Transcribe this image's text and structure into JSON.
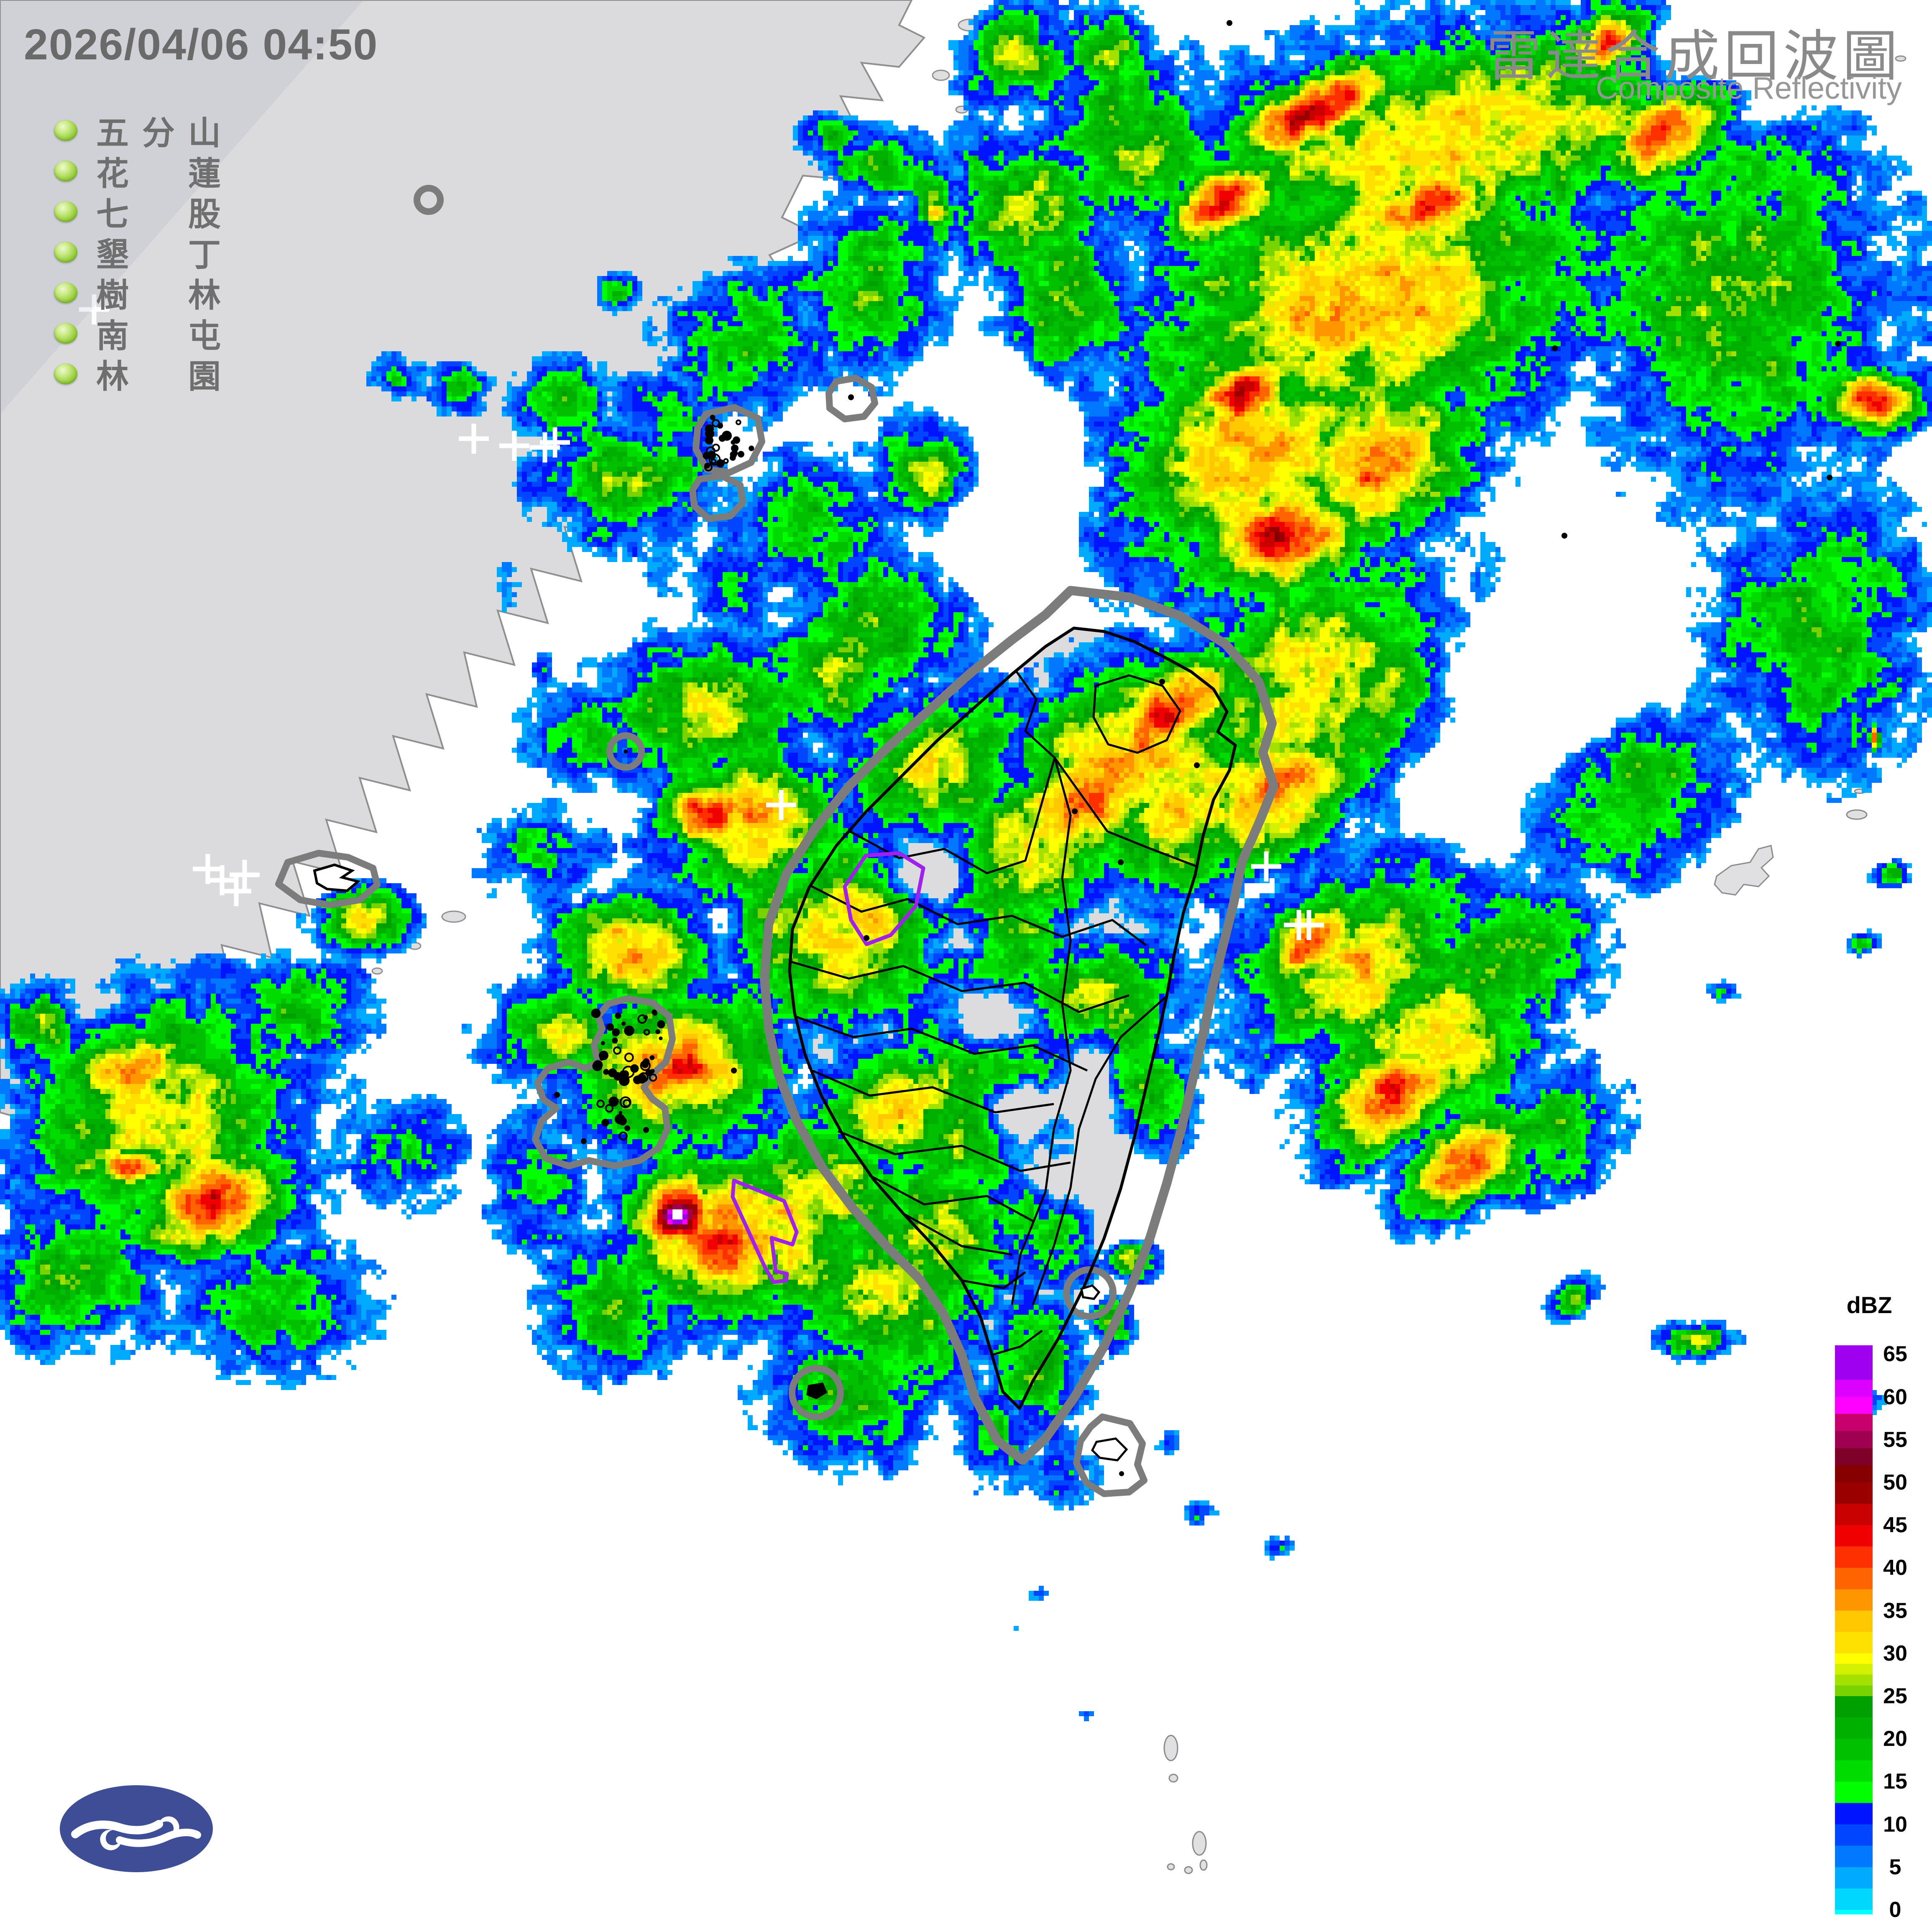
{
  "header": {
    "timestamp": "2026/04/06 04:50"
  },
  "title": {
    "zh": "雷達合成回波圖",
    "en": "Composite Reflectivity"
  },
  "stations": {
    "names": [
      "五分山",
      "花蓮",
      "七股",
      "墾丁",
      "樹林",
      "南屯",
      "林園"
    ],
    "rows": [
      [
        "五",
        "分",
        "山"
      ],
      [
        "花",
        "",
        "蓮"
      ],
      [
        "七",
        "",
        "股"
      ],
      [
        "墾",
        "",
        "丁"
      ],
      [
        "樹",
        "",
        "林"
      ],
      [
        "南",
        "",
        "屯"
      ],
      [
        "林",
        "",
        "園"
      ]
    ],
    "dot_color": "#9ACF3F"
  },
  "legend": {
    "title": "dBZ",
    "ticks": [
      65,
      60,
      55,
      50,
      45,
      40,
      35,
      30,
      25,
      20,
      15,
      10,
      5,
      0
    ],
    "stops": [
      [
        67,
        "#FFFFFF"
      ],
      [
        65,
        "#A000F0"
      ],
      [
        62,
        "#DC00FF"
      ],
      [
        60,
        "#FF00FF"
      ],
      [
        58,
        "#C8006E"
      ],
      [
        56,
        "#A00050"
      ],
      [
        54,
        "#7D0028"
      ],
      [
        52,
        "#870000"
      ],
      [
        50,
        "#9B0000"
      ],
      [
        47.5,
        "#C80000"
      ],
      [
        45,
        "#F00000"
      ],
      [
        42.5,
        "#FF3000"
      ],
      [
        40,
        "#FF6400"
      ],
      [
        37.5,
        "#FF9600"
      ],
      [
        35,
        "#FFC800"
      ],
      [
        32.5,
        "#FFE100"
      ],
      [
        30,
        "#FFFF00"
      ],
      [
        28.75,
        "#D2F000"
      ],
      [
        27.5,
        "#A5E100"
      ],
      [
        26.25,
        "#78D200"
      ],
      [
        25,
        "#00A000"
      ],
      [
        22.5,
        "#00B000"
      ],
      [
        20,
        "#00C000"
      ],
      [
        17.5,
        "#00DC00"
      ],
      [
        15,
        "#00FF00"
      ],
      [
        12.5,
        "#0014FF"
      ],
      [
        10,
        "#0046FF"
      ],
      [
        7.5,
        "#0078FF"
      ],
      [
        5,
        "#00AAFF"
      ],
      [
        2.5,
        "#00D7FF"
      ],
      [
        0,
        "#00FFFF"
      ]
    ]
  },
  "logo": {
    "name": "central-weather-administration-logo",
    "color": "#3D4E97"
  },
  "map_data": {
    "type": "heatmap",
    "unit": "dBZ",
    "region": "Taiwan and surrounding seas",
    "echo_blobs": [
      [
        3500,
        330,
        950,
        360,
        -12,
        34
      ],
      [
        3280,
        700,
        800,
        500,
        -25,
        36
      ],
      [
        3000,
        1100,
        500,
        450,
        -15,
        36
      ],
      [
        3150,
        1650,
        550,
        400,
        -25,
        33
      ],
      [
        4150,
        700,
        500,
        600,
        0,
        26
      ],
      [
        4350,
        1500,
        350,
        450,
        0,
        22
      ],
      [
        2700,
        350,
        300,
        300,
        0,
        27
      ],
      [
        2550,
        700,
        250,
        350,
        0,
        24
      ],
      [
        3900,
        1900,
        350,
        250,
        -30,
        24
      ],
      [
        2850,
        1950,
        350,
        250,
        -30,
        34
      ],
      [
        2450,
        500,
        280,
        260,
        0,
        27
      ],
      [
        3150,
        260,
        330,
        120,
        -28,
        47
      ],
      [
        2930,
        480,
        240,
        120,
        -30,
        46
      ],
      [
        3400,
        500,
        300,
        120,
        -25,
        44
      ],
      [
        2980,
        940,
        220,
        130,
        -20,
        45
      ],
      [
        3070,
        1280,
        260,
        170,
        -18,
        48
      ],
      [
        2800,
        1700,
        300,
        160,
        -35,
        44
      ],
      [
        4000,
        300,
        280,
        140,
        -35,
        45
      ],
      [
        4480,
        960,
        150,
        100,
        0,
        44
      ],
      [
        3850,
        100,
        200,
        100,
        -30,
        42
      ],
      [
        3300,
        1100,
        350,
        250,
        -20,
        41
      ],
      [
        2600,
        1900,
        300,
        200,
        -35,
        42
      ],
      [
        3050,
        1900,
        300,
        220,
        -30,
        40
      ],
      [
        3250,
        2300,
        400,
        300,
        -30,
        36
      ],
      [
        3140,
        2250,
        180,
        120,
        -35,
        47
      ],
      [
        3320,
        2620,
        260,
        160,
        -35,
        47
      ],
      [
        3500,
        2780,
        240,
        140,
        -35,
        44
      ],
      [
        3400,
        2500,
        400,
        300,
        -30,
        33
      ],
      [
        3600,
        2300,
        300,
        250,
        -30,
        26
      ],
      [
        3700,
        2700,
        250,
        200,
        -30,
        22
      ],
      [
        1500,
        1150,
        280,
        200,
        0,
        25
      ],
      [
        1800,
        820,
        280,
        220,
        0,
        23
      ],
      [
        2080,
        680,
        230,
        280,
        0,
        26
      ],
      [
        1350,
        960,
        160,
        130,
        0,
        22
      ],
      [
        2230,
        1130,
        200,
        180,
        0,
        29
      ],
      [
        1950,
        1250,
        250,
        220,
        0,
        20
      ],
      [
        1600,
        1000,
        200,
        160,
        0,
        17
      ],
      [
        2230,
        480,
        80,
        160,
        -20,
        24
      ],
      [
        1100,
        930,
        100,
        80,
        0,
        20
      ],
      [
        2100,
        1500,
        300,
        250,
        0,
        24
      ],
      [
        1700,
        1700,
        350,
        250,
        0,
        29
      ],
      [
        1800,
        1960,
        300,
        260,
        0,
        36
      ],
      [
        1700,
        1950,
        170,
        130,
        0,
        47
      ],
      [
        2020,
        2230,
        380,
        320,
        0,
        34
      ],
      [
        1520,
        2280,
        260,
        190,
        0,
        37
      ],
      [
        2250,
        1830,
        300,
        250,
        0,
        31
      ],
      [
        1980,
        1630,
        280,
        200,
        0,
        25
      ],
      [
        1400,
        1750,
        200,
        160,
        0,
        20
      ],
      [
        1300,
        2050,
        200,
        160,
        0,
        18
      ],
      [
        2100,
        400,
        170,
        120,
        0,
        24
      ],
      [
        2000,
        330,
        120,
        80,
        0,
        20
      ],
      [
        2240,
        510,
        60,
        50,
        0,
        33
      ],
      [
        1600,
        1200,
        120,
        300,
        0,
        13
      ],
      [
        1750,
        1400,
        150,
        200,
        0,
        16
      ],
      [
        1210,
        1400,
        50,
        90,
        0,
        10
      ],
      [
        1300,
        1600,
        40,
        70,
        0,
        9
      ],
      [
        380,
        2680,
        480,
        380,
        -15,
        33
      ],
      [
        520,
        2870,
        280,
        190,
        -15,
        45
      ],
      [
        320,
        2560,
        220,
        160,
        0,
        39
      ],
      [
        180,
        3060,
        280,
        220,
        0,
        25
      ],
      [
        720,
        2420,
        220,
        160,
        0,
        23
      ],
      [
        860,
        2200,
        150,
        100,
        0,
        34
      ],
      [
        320,
        2790,
        130,
        70,
        0,
        48
      ],
      [
        650,
        3120,
        320,
        220,
        0,
        21
      ],
      [
        980,
        2760,
        180,
        180,
        0,
        16
      ],
      [
        100,
        2450,
        150,
        120,
        0,
        28
      ],
      [
        1620,
        2560,
        360,
        260,
        -10,
        39
      ],
      [
        1640,
        2560,
        170,
        120,
        0,
        46
      ],
      [
        1730,
        2950,
        320,
        270,
        0,
        42
      ],
      [
        1625,
        2905,
        170,
        140,
        0,
        52
      ],
      [
        1620,
        2905,
        75,
        62,
        0,
        72
      ],
      [
        1950,
        2920,
        380,
        320,
        0,
        37
      ],
      [
        2130,
        3120,
        320,
        300,
        0,
        30
      ],
      [
        1470,
        3120,
        220,
        220,
        0,
        25
      ],
      [
        2030,
        3320,
        270,
        240,
        0,
        25
      ],
      [
        2200,
        3180,
        220,
        260,
        0,
        15
      ],
      [
        1330,
        2470,
        220,
        160,
        0,
        29
      ],
      [
        1280,
        2830,
        160,
        220,
        0,
        17
      ],
      [
        2320,
        2700,
        250,
        250,
        0,
        27
      ],
      [
        2700,
        1800,
        420,
        280,
        -30,
        40
      ],
      [
        2450,
        2050,
        300,
        260,
        0,
        33
      ],
      [
        2350,
        2250,
        280,
        230,
        0,
        31
      ],
      [
        2350,
        2550,
        330,
        300,
        0,
        28
      ],
      [
        2500,
        2850,
        300,
        330,
        0,
        26
      ],
      [
        2250,
        2950,
        260,
        300,
        0,
        28
      ],
      [
        2150,
        2650,
        260,
        220,
        0,
        34
      ],
      [
        2100,
        3080,
        220,
        200,
        0,
        31
      ],
      [
        2480,
        3260,
        160,
        220,
        0,
        25
      ],
      [
        2380,
        3440,
        130,
        160,
        0,
        21
      ],
      [
        2550,
        3520,
        130,
        130,
        0,
        11
      ],
      [
        2620,
        2400,
        250,
        250,
        0,
        30
      ],
      [
        2700,
        2600,
        200,
        250,
        0,
        24
      ],
      [
        2700,
        3010,
        90,
        70,
        0,
        32
      ],
      [
        2660,
        3160,
        70,
        90,
        0,
        24
      ],
      [
        2870,
        3620,
        60,
        45,
        0,
        11
      ],
      [
        2420,
        3900,
        70,
        28,
        0,
        7
      ],
      [
        2480,
        3810,
        50,
        22,
        0,
        9
      ],
      [
        3060,
        3700,
        45,
        35,
        0,
        18
      ],
      [
        2800,
        3450,
        55,
        40,
        0,
        12
      ],
      [
        3620,
        2810,
        100,
        60,
        -40,
        23
      ],
      [
        3760,
        3110,
        90,
        55,
        -40,
        25
      ],
      [
        4060,
        3205,
        110,
        60,
        0,
        30
      ],
      [
        4450,
        3350,
        70,
        45,
        0,
        20
      ],
      [
        4520,
        2090,
        60,
        40,
        0,
        22
      ],
      [
        4450,
        2255,
        60,
        35,
        0,
        20
      ],
      [
        4120,
        2370,
        50,
        35,
        0,
        18
      ],
      [
        4483,
        1765,
        18,
        45,
        0,
        42
      ],
      [
        2600,
        4100,
        35,
        20,
        0,
        7
      ],
      [
        2340,
        4180,
        40,
        18,
        0,
        8
      ],
      [
        2430,
        140,
        200,
        160,
        0,
        27
      ],
      [
        2640,
        120,
        160,
        140,
        0,
        25
      ],
      [
        2340,
        420,
        60,
        110,
        -20,
        22
      ],
      [
        2230,
        720,
        70,
        120,
        -20,
        13
      ],
      [
        1480,
        700,
        70,
        60,
        0,
        18
      ],
      [
        950,
        900,
        90,
        70,
        0,
        19
      ]
    ],
    "suppressors": [
      [
        2230,
        2090,
        110,
        90,
        26
      ],
      [
        2300,
        2250,
        110,
        95,
        26
      ],
      [
        2360,
        2450,
        120,
        105,
        26
      ],
      [
        2430,
        2650,
        120,
        105,
        26
      ],
      [
        2520,
        2820,
        140,
        125,
        24
      ],
      [
        2620,
        2600,
        95,
        210,
        22
      ],
      [
        2680,
        2870,
        110,
        160,
        22
      ],
      [
        3660,
        1620,
        250,
        210,
        30
      ],
      [
        3480,
        1870,
        180,
        140,
        18
      ],
      [
        2440,
        1110,
        200,
        260,
        18
      ],
      [
        2020,
        2960,
        110,
        90,
        16
      ],
      [
        4150,
        130,
        310,
        150,
        24
      ],
      [
        2380,
        1300,
        160,
        160,
        14
      ]
    ],
    "radar_markers": [
      [
        225,
        740
      ],
      [
        1133,
        1049
      ],
      [
        1230,
        1066
      ],
      [
        1303,
        1070
      ],
      [
        1327,
        1058
      ],
      [
        497,
        2078
      ],
      [
        531,
        2105
      ],
      [
        565,
        2131
      ],
      [
        585,
        2092
      ],
      [
        1868,
        1925
      ],
      [
        3028,
        2072
      ],
      [
        3106,
        2212
      ],
      [
        3130,
        2212
      ]
    ],
    "lightning": {
      "clusters": [
        [
          1688,
          998,
          1800,
          1122,
          24,
          1
        ],
        [
          1415,
          2418,
          1592,
          2588,
          40,
          2
        ],
        [
          1428,
          2632,
          1508,
          2726,
          10,
          3
        ]
      ],
      "strikes": [
        [
          2940,
          55
        ],
        [
          3718,
          833
        ],
        [
          4395,
          822
        ],
        [
          3741,
          1281
        ],
        [
          4375,
          1142
        ],
        [
          2570,
          1940
        ],
        [
          2072,
          2243
        ],
        [
          1755,
          2560
        ],
        [
          2779,
          1630
        ],
        [
          2862,
          1830
        ],
        [
          2680,
          2062
        ],
        [
          1332,
          2618
        ],
        [
          1396,
          2729
        ],
        [
          1500,
          2698
        ],
        [
          1545,
          2702
        ],
        [
          2035,
          950
        ]
      ]
    },
    "warning_polygons": {
      "color": "#A020F0",
      "polys": [
        "2020,2120 2070,2046 2150,2040 2208,2076 2190,2166 2130,2236 2072,2258 2035,2200",
        "1755,2823 1875,2872 1905,2946 1895,2976 1845,2960 1855,3040 1882,3046 1880,3062 1850,3066 1830,3032 1752,2862"
      ]
    }
  }
}
